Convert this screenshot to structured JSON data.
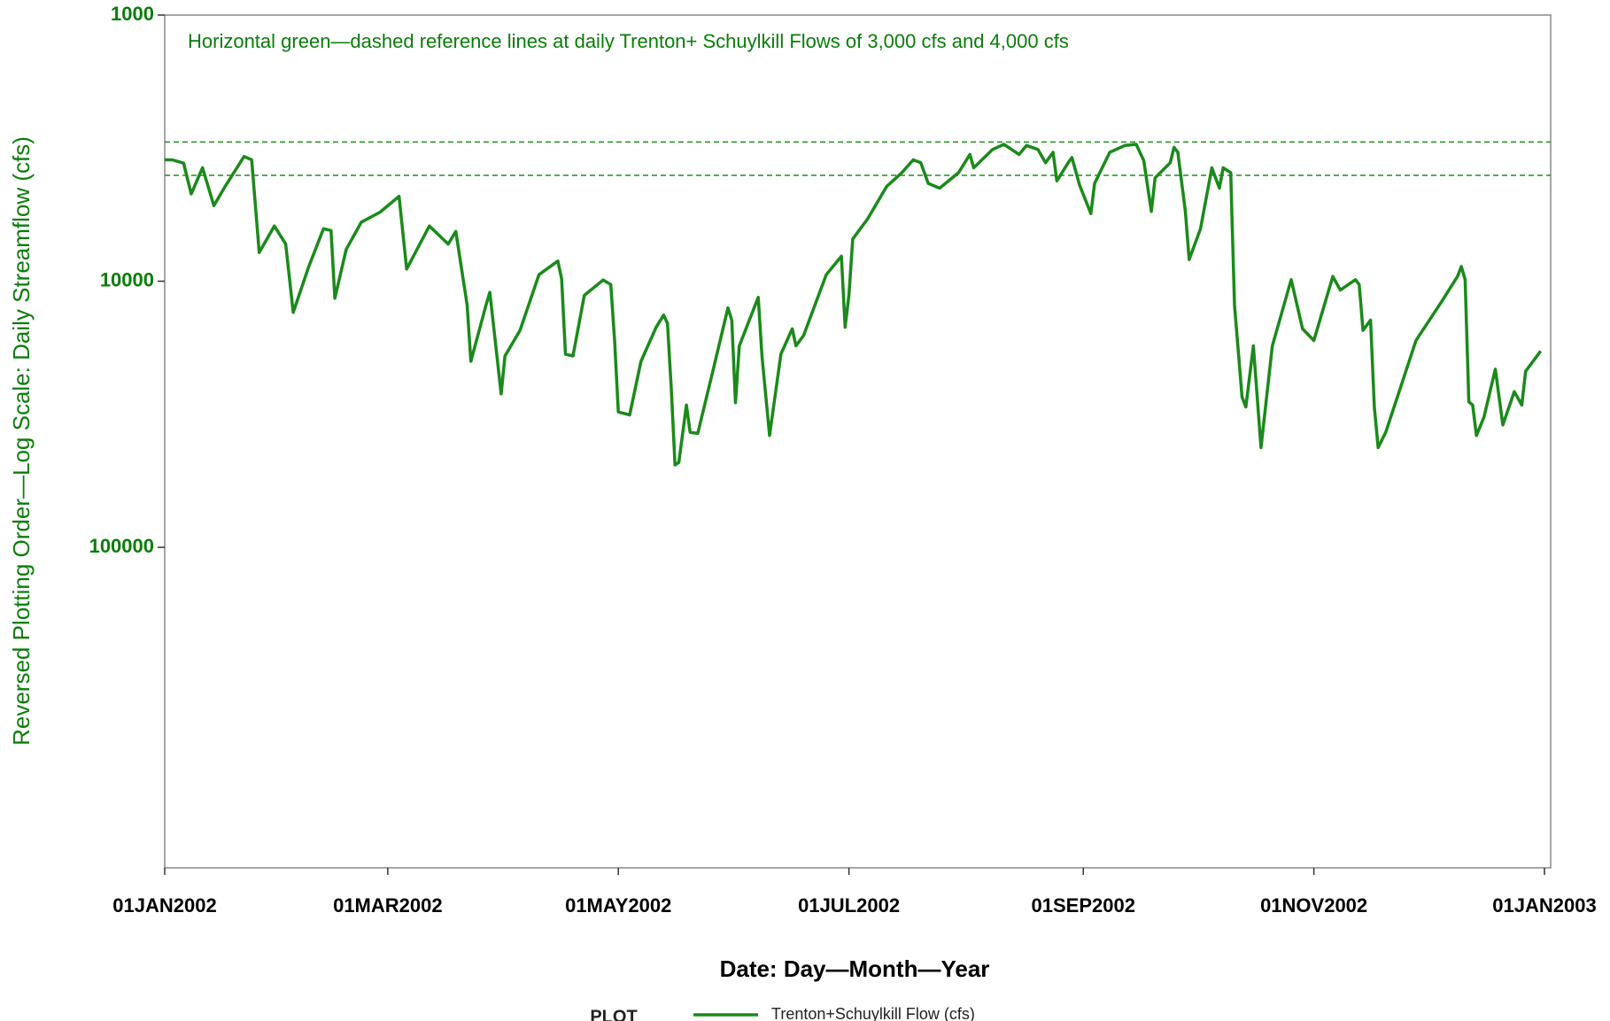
{
  "chart_data": {
    "type": "line",
    "annotation": "Horizontal green—dashed reference lines at daily Trenton+ Schuylkill Flows of 3,000 cfs and 4,000 cfs",
    "y_label": "Reversed Plotting Order—Log Scale: Daily Streamflow (cfs)",
    "x_label": "Date:  Day—Month—Year",
    "legend_title": "PLOT",
    "y_scale": "log",
    "y_reversed": true,
    "ylim": [
      1000,
      1600000
    ],
    "yticks": [
      1000,
      10000,
      100000
    ],
    "xlim": [
      "2002-01-01",
      "2003-01-01"
    ],
    "xticks": [
      {
        "value": "2002-01-01",
        "label": "01JAN2002"
      },
      {
        "value": "2002-03-01",
        "label": "01MAR2002"
      },
      {
        "value": "2002-05-01",
        "label": "01MAY2002"
      },
      {
        "value": "2002-07-01",
        "label": "01JUL2002"
      },
      {
        "value": "2002-09-01",
        "label": "01SEP2002"
      },
      {
        "value": "2002-11-01",
        "label": "01NOV2002"
      },
      {
        "value": "2003-01-01",
        "label": "01JAN2003"
      }
    ],
    "reference_lines": [
      3000,
      4000
    ],
    "reference_color": "#1f8f1f",
    "text_color": "#0a7d0a",
    "x": [
      "2002-01-01",
      "2002-01-03",
      "2002-01-06",
      "2002-01-08",
      "2002-01-11",
      "2002-01-14",
      "2002-01-17",
      "2002-01-22",
      "2002-01-24",
      "2002-01-26",
      "2002-01-30",
      "2002-02-02",
      "2002-02-04",
      "2002-02-08",
      "2002-02-12",
      "2002-02-14",
      "2002-02-15",
      "2002-02-18",
      "2002-02-22",
      "2002-02-27",
      "2002-03-04",
      "2002-03-06",
      "2002-03-12",
      "2002-03-17",
      "2002-03-19",
      "2002-03-22",
      "2002-03-23",
      "2002-03-27",
      "2002-03-28",
      "2002-03-31",
      "2002-04-01",
      "2002-04-05",
      "2002-04-10",
      "2002-04-15",
      "2002-04-16",
      "2002-04-17",
      "2002-04-19",
      "2002-04-22",
      "2002-04-27",
      "2002-04-29",
      "2002-04-30",
      "2002-05-01",
      "2002-05-04",
      "2002-05-07",
      "2002-05-11",
      "2002-05-13",
      "2002-05-14",
      "2002-05-15",
      "2002-05-16",
      "2002-05-17",
      "2002-05-19",
      "2002-05-20",
      "2002-05-22",
      "2002-05-26",
      "2002-05-30",
      "2002-05-31",
      "2002-06-01",
      "2002-06-02",
      "2002-06-07",
      "2002-06-08",
      "2002-06-10",
      "2002-06-13",
      "2002-06-16",
      "2002-06-17",
      "2002-06-19",
      "2002-06-25",
      "2002-06-29",
      "2002-06-30",
      "2002-07-01",
      "2002-07-02",
      "2002-07-06",
      "2002-07-11",
      "2002-07-15",
      "2002-07-18",
      "2002-07-20",
      "2002-07-22",
      "2002-07-25",
      "2002-07-30",
      "2002-08-02",
      "2002-08-03",
      "2002-08-08",
      "2002-08-11",
      "2002-08-15",
      "2002-08-17",
      "2002-08-20",
      "2002-08-22",
      "2002-08-24",
      "2002-08-25",
      "2002-08-28",
      "2002-08-29",
      "2002-08-31",
      "2002-09-03",
      "2002-09-04",
      "2002-09-08",
      "2002-09-12",
      "2002-09-15",
      "2002-09-17",
      "2002-09-19",
      "2002-09-20",
      "2002-09-24",
      "2002-09-25",
      "2002-09-26",
      "2002-09-28",
      "2002-09-29",
      "2002-10-02",
      "2002-10-05",
      "2002-10-07",
      "2002-10-08",
      "2002-10-10",
      "2002-10-11",
      "2002-10-13",
      "2002-10-14",
      "2002-10-16",
      "2002-10-18",
      "2002-10-21",
      "2002-10-26",
      "2002-10-29",
      "2002-11-01",
      "2002-11-06",
      "2002-11-08",
      "2002-11-12",
      "2002-11-13",
      "2002-11-14",
      "2002-11-16",
      "2002-11-17",
      "2002-11-18",
      "2002-11-20",
      "2002-11-24",
      "2002-11-28",
      "2002-12-05",
      "2002-12-09",
      "2002-12-10",
      "2002-12-11",
      "2002-12-12",
      "2002-12-13",
      "2002-12-14",
      "2002-12-16",
      "2002-12-19",
      "2002-12-21",
      "2002-12-24",
      "2002-12-26",
      "2002-12-27",
      "2002-12-31"
    ],
    "series": [
      {
        "name": "Trenton+Schuylkill Flow (cfs)",
        "color": "#1a8a1a",
        "values": [
          3500,
          3500,
          3600,
          4700,
          3750,
          5200,
          4400,
          3400,
          3500,
          7800,
          6200,
          7250,
          13100,
          8900,
          6350,
          6450,
          11600,
          7600,
          6000,
          5500,
          4800,
          9000,
          6200,
          7250,
          6500,
          12300,
          20000,
          12300,
          11000,
          26500,
          19100,
          15300,
          9450,
          8400,
          9800,
          18800,
          19100,
          11300,
          9900,
          10300,
          16700,
          31000,
          31800,
          20000,
          14900,
          13400,
          14400,
          25300,
          49000,
          48000,
          29200,
          37000,
          37300,
          21800,
          12600,
          14000,
          28600,
          17500,
          11500,
          19100,
          38000,
          18800,
          15100,
          17500,
          16000,
          9450,
          8060,
          14900,
          11300,
          6940,
          5820,
          4400,
          3910,
          3500,
          3590,
          4290,
          4470,
          3910,
          3340,
          3750,
          3200,
          3060,
          3340,
          3090,
          3200,
          3590,
          3280,
          4200,
          3590,
          3430,
          4350,
          5570,
          4290,
          3280,
          3090,
          3060,
          3520,
          5470,
          4090,
          3590,
          3140,
          3280,
          5470,
          8290,
          6350,
          3750,
          4470,
          3750,
          3910,
          12300,
          27200,
          29700,
          17500,
          42200,
          17500,
          9870,
          15100,
          16700,
          9600,
          10800,
          9870,
          10300,
          15300,
          14000,
          29700,
          42200,
          37000,
          24900,
          16700,
          11800,
          9600,
          8800,
          9870,
          28400,
          29200,
          38000,
          32400,
          21400,
          34700,
          26000,
          29200,
          21800,
          18300
        ]
      }
    ]
  }
}
